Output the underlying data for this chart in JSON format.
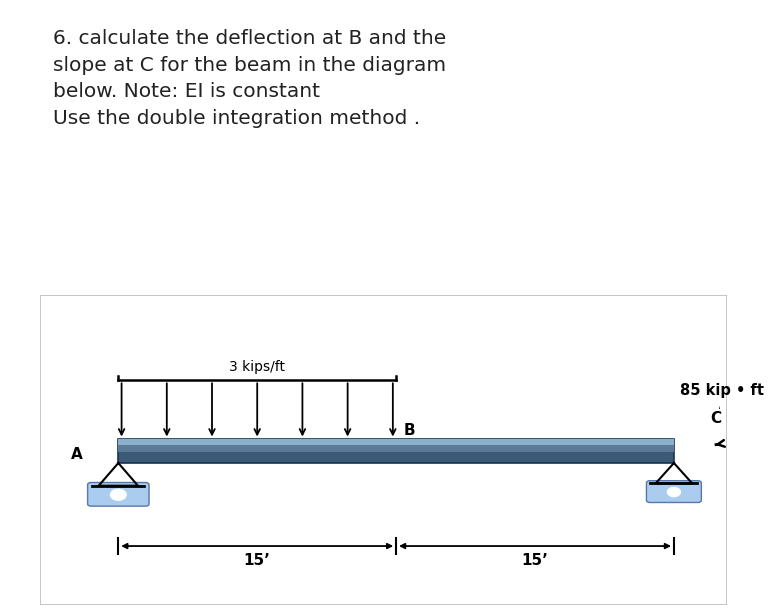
{
  "title_text": "6. calculate the deflection at B and the\nslope at C for the beam in the diagram\nbelow. Note: EI is constant\nUse the double integration method .",
  "title_fontsize": 14.5,
  "title_color": "#222222",
  "bg_color": "#ffffff",
  "diagram_bg": "#999999",
  "beam_top_color": "#8ab0cc",
  "beam_mid_color": "#5a7a98",
  "beam_dark_color": "#3a5a78",
  "load_label": "3 kips/ft",
  "moment_label": "85 kip • ft",
  "point_B_label": "B",
  "point_A_label": "A",
  "point_C_label": "C",
  "dim_label_left": "15’",
  "dim_label_right": "15’",
  "button1_color": "#787878",
  "button2_color": "#d4701a",
  "support_blue": "#aaccee",
  "support_dark_blue": "#7799bb"
}
